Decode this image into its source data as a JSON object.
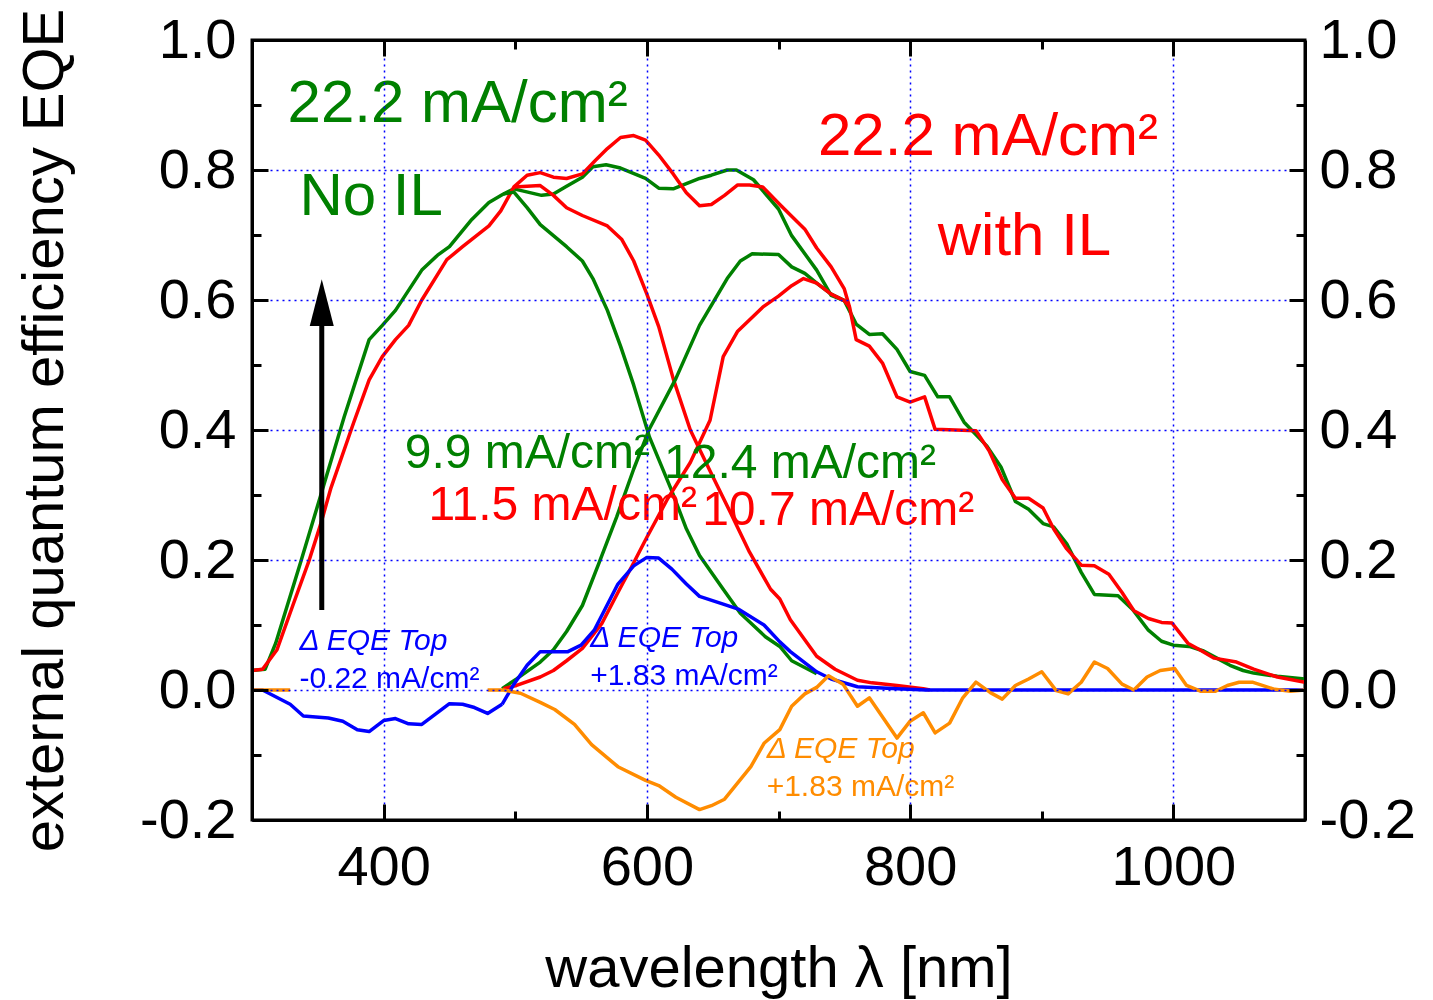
{
  "chart_data": {
    "type": "line",
    "xlabel": "wavelength λ  [nm]",
    "ylabel": "external quantum efficiency EQE",
    "xlim": [
      300,
      1100
    ],
    "xticks": [
      400,
      {
        "value": 500,
        "label": null
      },
      600,
      {
        "value": 700,
        "label": null
      },
      800,
      {
        "value": 900,
        "label": null
      },
      1000
    ],
    "ylim": [
      -0.2,
      1.0
    ],
    "yticks": [
      -0.2,
      {
        "value": -0.1,
        "label": null
      },
      {
        "value": 0,
        "label": "0.0"
      },
      {
        "value": 0.1,
        "label": null
      },
      0.2,
      {
        "value": 0.3,
        "label": null
      },
      0.4,
      {
        "value": 0.5,
        "label": null
      },
      0.6,
      {
        "value": 0.7,
        "label": null
      },
      0.8,
      {
        "value": 0.9,
        "label": null
      },
      {
        "value": 1,
        "label": "1.0"
      }
    ],
    "y2lim": [
      -0.2,
      1.0
    ],
    "y2ticks": [
      -0.2,
      {
        "value": -0.1,
        "label": null
      },
      {
        "value": 0,
        "label": "0.0"
      },
      {
        "value": 0.1,
        "label": null
      },
      0.2,
      {
        "value": 0.3,
        "label": null
      },
      0.4,
      {
        "value": 0.5,
        "label": null
      },
      0.6,
      {
        "value": 0.7,
        "label": null
      },
      0.8,
      {
        "value": 0.9,
        "label": null
      },
      {
        "value": 1,
        "label": "1.0"
      }
    ],
    "grid": true,
    "series": [
      {
        "name": "22.2 mA/cm²\nNo IL",
        "color": "#008000",
        "x": [
          300,
          310,
          318,
          337,
          352,
          370,
          389,
          399,
          409,
          429,
          441,
          450,
          467,
          480,
          491,
          499,
          520,
          529,
          539,
          551,
          559,
          569,
          580,
          599,
          609,
          620,
          630,
          640,
          649,
          661,
          668,
          681,
          700,
          710,
          729,
          740,
          750,
          759,
          769,
          779,
          790,
          800,
          811,
          821,
          830,
          841,
          858,
          869,
          880,
          890,
          901,
          909,
          919,
          930,
          940,
          958,
          969,
          981,
          991,
          1000,
          1012,
          1023,
          1033,
          1043,
          1053,
          1061,
          1079,
          1100
        ],
        "values": [
          0.03,
          0.032,
          0.072,
          0.197,
          0.298,
          0.42,
          0.539,
          0.561,
          0.584,
          0.646,
          0.669,
          0.682,
          0.724,
          0.75,
          0.763,
          0.771,
          0.761,
          0.763,
          0.775,
          0.789,
          0.805,
          0.808,
          0.803,
          0.787,
          0.772,
          0.771,
          0.779,
          0.787,
          0.792,
          0.8,
          0.8,
          0.785,
          0.74,
          0.699,
          0.646,
          0.607,
          0.599,
          0.563,
          0.547,
          0.548,
          0.524,
          0.49,
          0.484,
          0.451,
          0.451,
          0.412,
          0.376,
          0.343,
          0.29,
          0.278,
          0.256,
          0.251,
          0.225,
          0.181,
          0.147,
          0.145,
          0.124,
          0.092,
          0.075,
          0.069,
          0.067,
          0.06,
          0.049,
          0.038,
          0.03,
          0.026,
          0.021,
          0.017
        ]
      },
      {
        "name": "22.2 mA/cm²\nwith IL",
        "color": "#ff0000",
        "x": [
          300,
          308,
          319,
          331,
          343,
          352,
          360,
          377,
          389,
          399,
          409,
          419,
          429,
          448,
          460,
          480,
          489,
          499,
          509,
          519,
          529,
          539,
          551,
          561,
          570,
          580,
          590,
          599,
          609,
          620,
          630,
          640,
          649,
          659,
          669,
          678,
          688,
          701,
          710,
          720,
          729,
          740,
          750,
          754,
          759,
          769,
          779,
          790,
          800,
          811,
          819,
          850,
          860,
          870,
          880,
          890,
          901,
          909,
          919,
          930,
          940,
          951,
          961,
          970,
          981,
          991,
          999,
          1011,
          1020,
          1031,
          1048,
          1061,
          1079,
          1100
        ],
        "values": [
          0.03,
          0.032,
          0.062,
          0.13,
          0.197,
          0.254,
          0.311,
          0.41,
          0.477,
          0.513,
          0.539,
          0.561,
          0.6,
          0.662,
          0.682,
          0.714,
          0.737,
          0.774,
          0.792,
          0.796,
          0.789,
          0.787,
          0.794,
          0.815,
          0.833,
          0.85,
          0.853,
          0.846,
          0.823,
          0.794,
          0.765,
          0.745,
          0.747,
          0.761,
          0.777,
          0.777,
          0.774,
          0.747,
          0.729,
          0.709,
          0.68,
          0.651,
          0.617,
          0.589,
          0.539,
          0.529,
          0.503,
          0.451,
          0.443,
          0.451,
          0.401,
          0.399,
          0.368,
          0.324,
          0.295,
          0.295,
          0.28,
          0.248,
          0.217,
          0.192,
          0.191,
          0.178,
          0.15,
          0.122,
          0.11,
          0.104,
          0.103,
          0.072,
          0.062,
          0.049,
          0.043,
          0.032,
          0.02,
          0.012
        ]
      },
      {
        "name": "9.9 mA/cm²",
        "color": "#008000",
        "x": [
          491,
          499,
          509,
          519,
          529,
          539,
          551,
          559,
          570,
          580,
          590,
          602,
          619,
          630,
          640,
          658,
          671,
          690,
          701,
          710,
          729
        ],
        "values": [
          0.763,
          0.766,
          0.742,
          0.716,
          0.699,
          0.682,
          0.66,
          0.633,
          0.584,
          0.529,
          0.469,
          0.389,
          0.306,
          0.248,
          0.207,
          0.155,
          0.118,
          0.082,
          0.067,
          0.045,
          0.025
        ]
      },
      {
        "name": "11.5 mA/cm²",
        "color": "#ff0000",
        "x": [
          499,
          519,
          529,
          539,
          551,
          570,
          581,
          590,
          600,
          609,
          620,
          633,
          638,
          648,
          663,
          678,
          694,
          701,
          709,
          729,
          743,
          760,
          771,
          790,
          810,
          815
        ],
        "values": [
          0.774,
          0.776,
          0.761,
          0.742,
          0.73,
          0.714,
          0.693,
          0.66,
          0.609,
          0.559,
          0.479,
          0.4,
          0.379,
          0.337,
          0.275,
          0.212,
          0.155,
          0.14,
          0.108,
          0.052,
          0.032,
          0.015,
          0.011,
          0.007,
          0.002,
          0
        ]
      },
      {
        "name": "12.4 mA/cm²",
        "color": "#008000",
        "x": [
          490,
          501,
          519,
          529,
          539,
          551,
          563,
          577,
          590,
          602,
          622,
          640,
          661,
          671,
          680,
          700,
          710,
          720,
          729,
          740,
          750
        ],
        "values": [
          0.002,
          0.017,
          0.043,
          0.062,
          0.09,
          0.13,
          0.192,
          0.266,
          0.34,
          0.402,
          0.479,
          0.561,
          0.633,
          0.66,
          0.671,
          0.67,
          0.651,
          0.641,
          0.626,
          0.609,
          0.599
        ]
      },
      {
        "name": "10.7 mA/cm²",
        "color": "#ff0000",
        "x": [
          491,
          501,
          519,
          529,
          539,
          551,
          566,
          578,
          589,
          600,
          616,
          633,
          648,
          658,
          669,
          688,
          700,
          710,
          719,
          729,
          740,
          750,
          754
        ],
        "values": [
          0.002,
          0.007,
          0.02,
          0.03,
          0.045,
          0.064,
          0.103,
          0.15,
          0.192,
          0.235,
          0.295,
          0.35,
          0.415,
          0.513,
          0.552,
          0.589,
          0.606,
          0.622,
          0.633,
          0.626,
          0.609,
          0.599,
          0.589
        ]
      },
      {
        "name": "Δ EQE Top\n-0.22 mA/cm²",
        "color": "#0000ff",
        "x": [
          300,
          308,
          329,
          339,
          358,
          369,
          380,
          389,
          400,
          409,
          419,
          429,
          450,
          460,
          469,
          479,
          490
        ],
        "values": [
          0,
          0,
          -0.022,
          -0.04,
          -0.043,
          -0.048,
          -0.061,
          -0.064,
          -0.047,
          -0.044,
          -0.052,
          -0.053,
          -0.021,
          -0.022,
          -0.027,
          -0.036,
          -0.022
        ]
      },
      {
        "name": "Δ EQE Top\n+1.83 mA/cm²",
        "color": "#0000ff",
        "x": [
          490,
          499,
          509,
          519,
          540,
          550,
          560,
          578,
          590,
          600,
          609,
          619,
          630,
          640,
          658,
          670,
          689,
          701,
          709,
          729,
          740,
          760,
          790,
          812,
          1100
        ],
        "values": [
          -0.022,
          0.009,
          0.038,
          0.059,
          0.059,
          0.069,
          0.092,
          0.163,
          0.191,
          0.204,
          0.203,
          0.186,
          0.163,
          0.144,
          0.132,
          0.124,
          0.1,
          0.074,
          0.059,
          0.028,
          0.017,
          0.005,
          0.002,
          0,
          0
        ]
      },
      {
        "name": "Δ EQE Top\n+1.83 mA/cm²",
        "color": "#ff8c00",
        "x": [
          300,
          329,
          400,
          479,
          491,
          504,
          519,
          530,
          545,
          558,
          578,
          599,
          609,
          622,
          640,
          649,
          659,
          679,
          689,
          701,
          710,
          720,
          729,
          738,
          749,
          760,
          769,
          790,
          800,
          810,
          819,
          830,
          840,
          850,
          861,
          870,
          880,
          890,
          900,
          911,
          920,
          930,
          940,
          950,
          961,
          970,
          980,
          990,
          1001,
          1010,
          1021,
          1032,
          1041,
          1050,
          1060,
          1077,
          1089,
          1100
        ],
        "values": [
          0,
          0,
          null,
          0,
          0,
          -0.005,
          -0.019,
          -0.03,
          -0.053,
          -0.084,
          -0.118,
          -0.139,
          -0.147,
          -0.165,
          -0.184,
          -0.178,
          -0.168,
          -0.118,
          -0.082,
          -0.061,
          -0.025,
          -0.006,
          0.004,
          0.022,
          0.009,
          -0.025,
          -0.012,
          -0.074,
          -0.048,
          -0.035,
          -0.066,
          -0.051,
          -0.012,
          0.012,
          -0.004,
          -0.014,
          0.007,
          0.017,
          0.028,
          -0.001,
          -0.006,
          0.012,
          0.043,
          0.033,
          0.009,
          0,
          0.02,
          0.03,
          0.033,
          0.007,
          -0.002,
          -0.002,
          0.007,
          0.012,
          0.012,
          0.001,
          -0.002,
          0
        ]
      }
    ]
  }
}
